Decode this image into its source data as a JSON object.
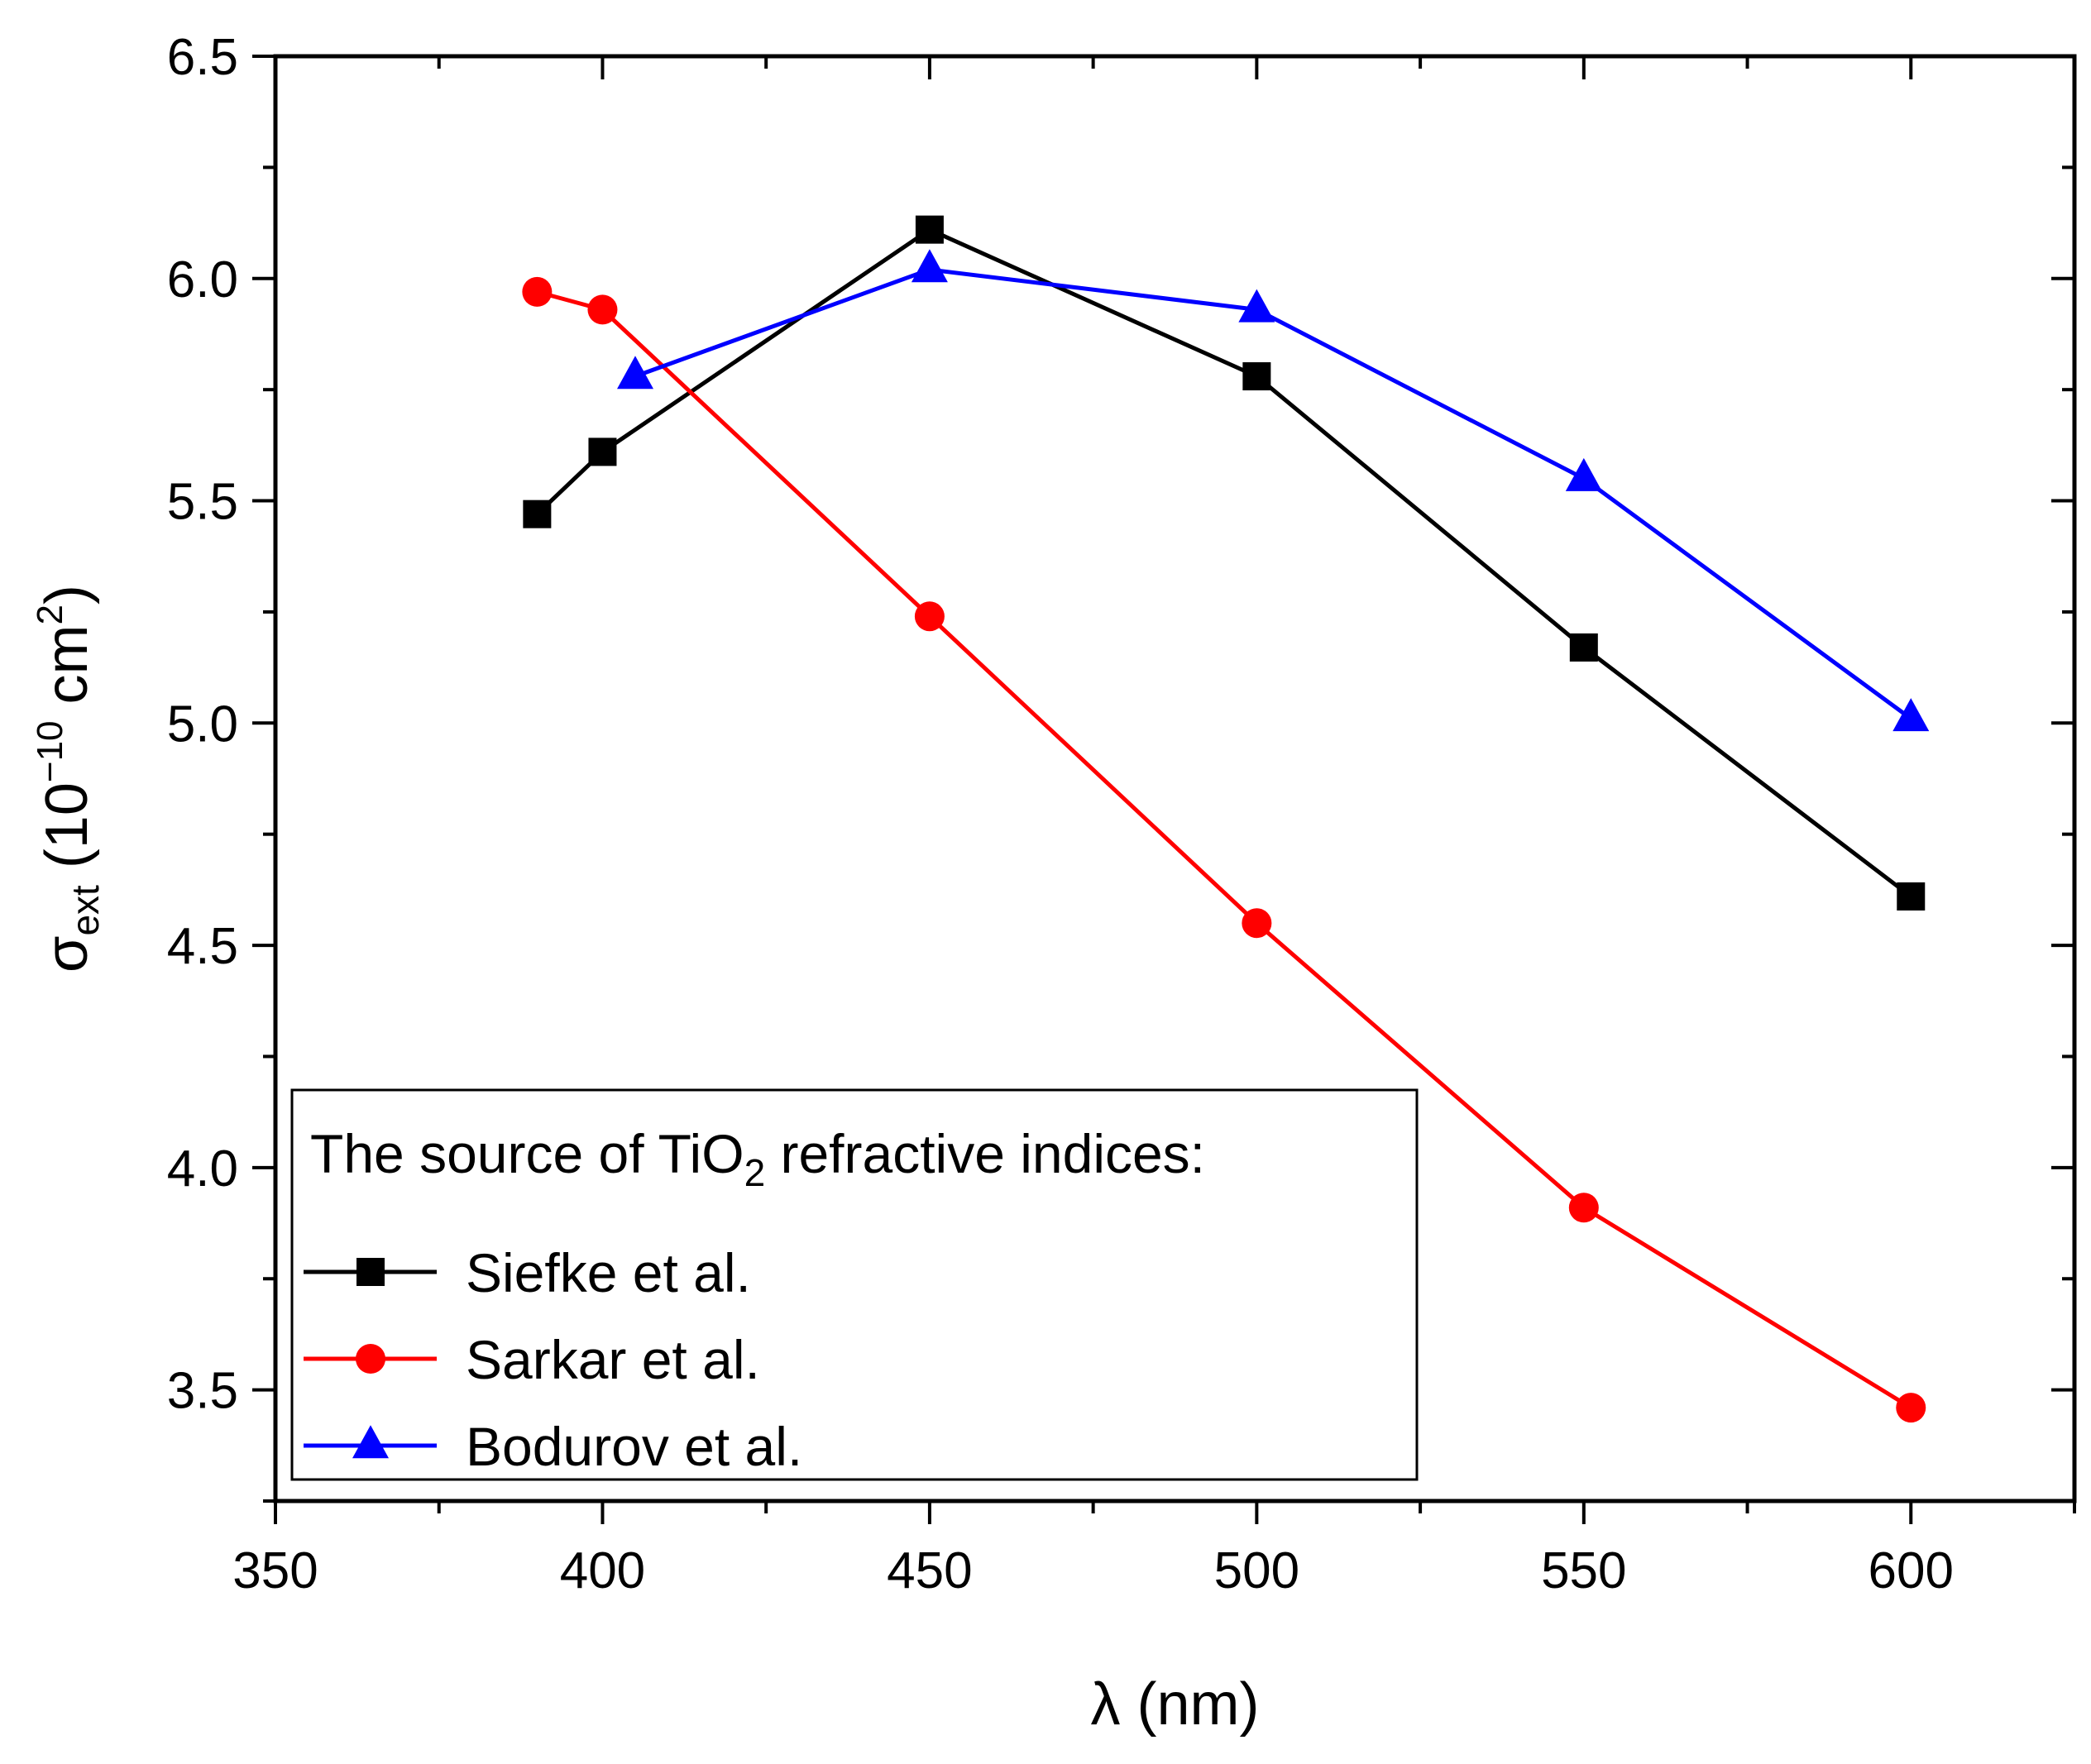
{
  "chart_data": {
    "type": "line",
    "title": "",
    "xlabel": "λ (nm)",
    "ylabel": {
      "symbol": "σ",
      "subscript": "ext",
      "unit_open": " (10",
      "unit_exp": "−10",
      "unit_mid": " cm",
      "unit_exp2": "2",
      "unit_close": ")"
    },
    "xlim": [
      350,
      625
    ],
    "ylim": [
      3.25,
      6.5
    ],
    "xticks": [
      350,
      400,
      450,
      500,
      550,
      600
    ],
    "xtick_labels": [
      "350",
      "400",
      "450",
      "500",
      "550",
      "600"
    ],
    "yticks": [
      3.5,
      4.0,
      4.5,
      5.0,
      5.5,
      6.0,
      6.5
    ],
    "ytick_labels": [
      "3.5",
      "4.0",
      "4.5",
      "5.0",
      "5.5",
      "6.0",
      "6.5"
    ],
    "x_minor_step": 25,
    "y_minor_step": 0.25,
    "grid": false,
    "legend": {
      "placement": "lower-left",
      "title_main": "The source of TiO",
      "title_sub": "2",
      "title_rest": " refractive indices:"
    },
    "series": [
      {
        "name": "Siefke et al.",
        "color": "#000000",
        "marker": "square",
        "x": [
          390,
          400,
          450,
          500,
          550,
          600
        ],
        "y": [
          5.47,
          5.61,
          6.11,
          5.78,
          5.17,
          4.61
        ]
      },
      {
        "name": "Sarkar et al.",
        "color": "#ff0000",
        "marker": "circle",
        "x": [
          390,
          400,
          450,
          500,
          550,
          600
        ],
        "y": [
          5.97,
          5.93,
          5.24,
          4.55,
          3.91,
          3.46
        ]
      },
      {
        "name": "Bodurov et al.",
        "color": "#0000ff",
        "marker": "triangle",
        "x": [
          405,
          450,
          500,
          550,
          600
        ],
        "y": [
          5.78,
          6.02,
          5.93,
          5.55,
          5.01
        ]
      }
    ]
  }
}
